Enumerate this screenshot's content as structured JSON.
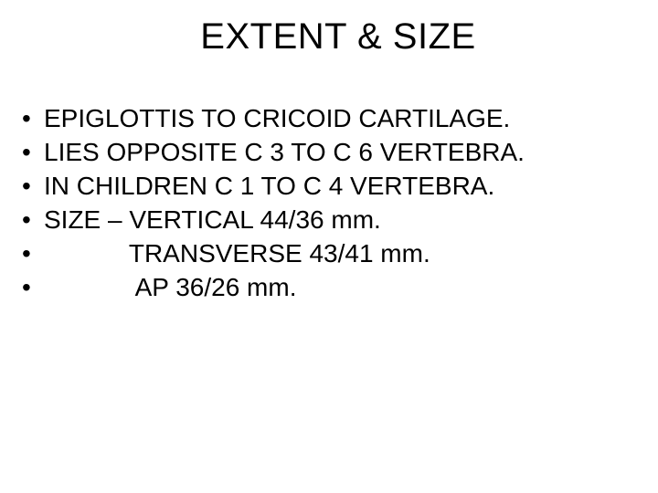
{
  "slide": {
    "title": "EXTENT & SIZE",
    "title_fontsize": 40,
    "body_fontsize": 28,
    "text_color": "#000000",
    "background_color": "#ffffff",
    "bullets": [
      {
        "marker": "•",
        "text": "EPIGLOTTIS TO CRICOID CARTILAGE."
      },
      {
        "marker": "•",
        "text": "LIES OPPOSITE C 3 TO C 6 VERTEBRA."
      },
      {
        "marker": "•",
        "text": "IN CHILDREN C 1 TO C 4 VERTEBRA."
      },
      {
        "marker": "•",
        "text": "SIZE – VERTICAL 44/36 mm."
      },
      {
        "marker": "•",
        "text": "            TRANSVERSE 43/41 mm."
      },
      {
        "marker": "•",
        "text": "             AP 36/26 mm."
      }
    ]
  }
}
